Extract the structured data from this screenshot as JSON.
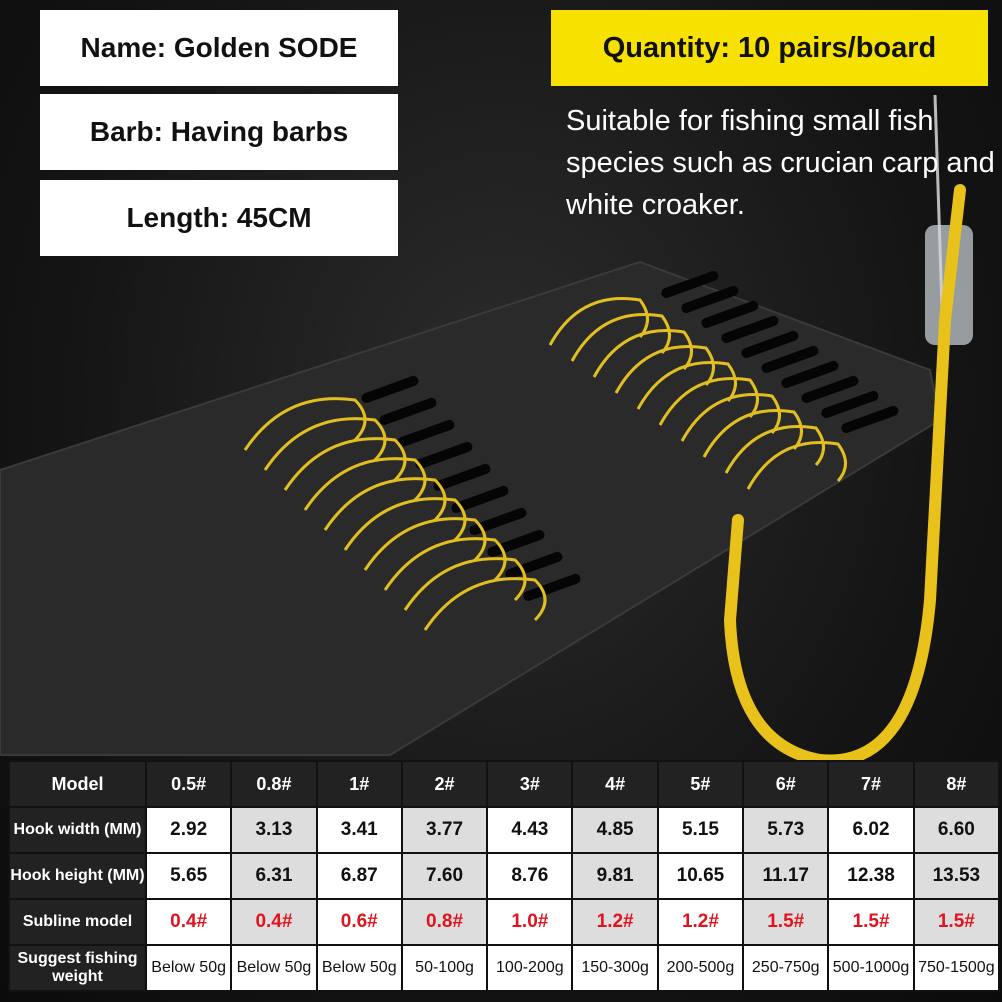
{
  "info": {
    "name": "Name: Golden SODE",
    "barb": "Barb: Having barbs",
    "length": "Length: 45CM"
  },
  "quantity": "Quantity: 10 pairs/board",
  "description": "Suitable for fishing small fish species such as crucian carp and white croaker.",
  "colors": {
    "accent": "#f6e100",
    "hook_gold": "#e8c21a",
    "subline_text": "#e0141e"
  },
  "table": {
    "header": {
      "label": "Model",
      "values": [
        "0.5#",
        "0.8#",
        "1#",
        "2#",
        "3#",
        "4#",
        "5#",
        "6#",
        "7#",
        "8#"
      ]
    },
    "rows": [
      {
        "label": "Hook width (MM)",
        "values": [
          "2.92",
          "3.13",
          "3.41",
          "3.77",
          "4.43",
          "4.85",
          "5.15",
          "5.73",
          "6.02",
          "6.60"
        ]
      },
      {
        "label": "Hook height (MM)",
        "values": [
          "5.65",
          "6.31",
          "6.87",
          "7.60",
          "8.76",
          "9.81",
          "10.65",
          "11.17",
          "12.38",
          "13.53"
        ]
      },
      {
        "label": "Subline model",
        "values": [
          "0.4#",
          "0.4#",
          "0.6#",
          "0.8#",
          "1.0#",
          "1.2#",
          "1.2#",
          "1.5#",
          "1.5#",
          "1.5#"
        ]
      },
      {
        "label": "Suggest fishing weight",
        "values": [
          "Below 50g",
          "Below 50g",
          "Below 50g",
          "50-100g",
          "100-200g",
          "150-300g",
          "200-500g",
          "250-750g",
          "500-1000g",
          "750-1500g"
        ]
      }
    ]
  }
}
